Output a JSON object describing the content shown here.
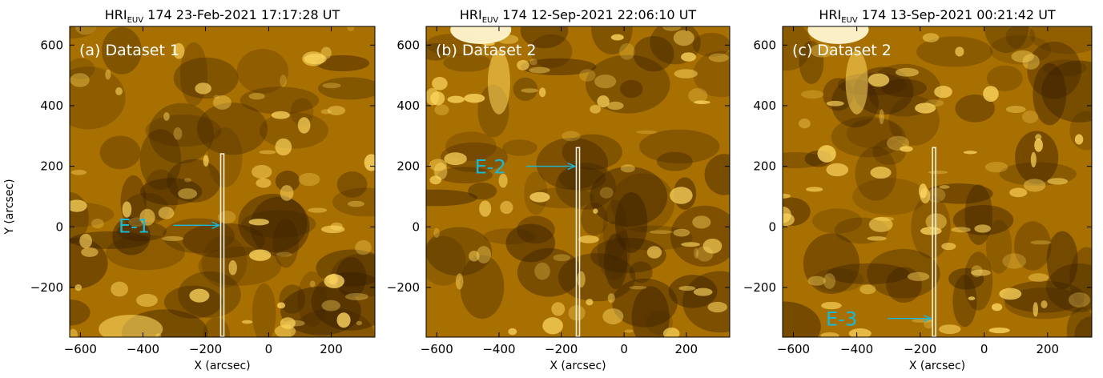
{
  "figure": {
    "panels": [
      {
        "title_prefix": "HRI",
        "title_sub": "EUV",
        "title_suffix": " 174 23-Feb-2021 17:17:28 UT",
        "label": "(a) Dataset 1",
        "event": "E-1",
        "show_ylabel": true
      },
      {
        "title_prefix": "HRI",
        "title_sub": "EUV",
        "title_suffix": " 174 12-Sep-2021 22:06:10 UT",
        "label": "(b) Dataset 2",
        "event": "E-2",
        "show_ylabel": false
      },
      {
        "title_prefix": "HRI",
        "title_sub": "EUV",
        "title_suffix": " 174 13-Sep-2021 00:21:42 UT",
        "label": "(c) Dataset 2",
        "event": "E-3",
        "show_ylabel": false
      }
    ],
    "xlabel": "X (arcsec)",
    "ylabel": "Y (arcsec)",
    "xticks": [
      "−600",
      "−400",
      "−200",
      "0",
      "200"
    ],
    "yticks": [
      "600",
      "400",
      "200",
      "0",
      "−200"
    ],
    "colors": {
      "image_base": "#a87000",
      "bright": "#ffd860",
      "dark": "#3a2000",
      "annotation": "#1ab8d8",
      "slit": "#f0f0e0",
      "label_text": "#ffffff"
    }
  }
}
